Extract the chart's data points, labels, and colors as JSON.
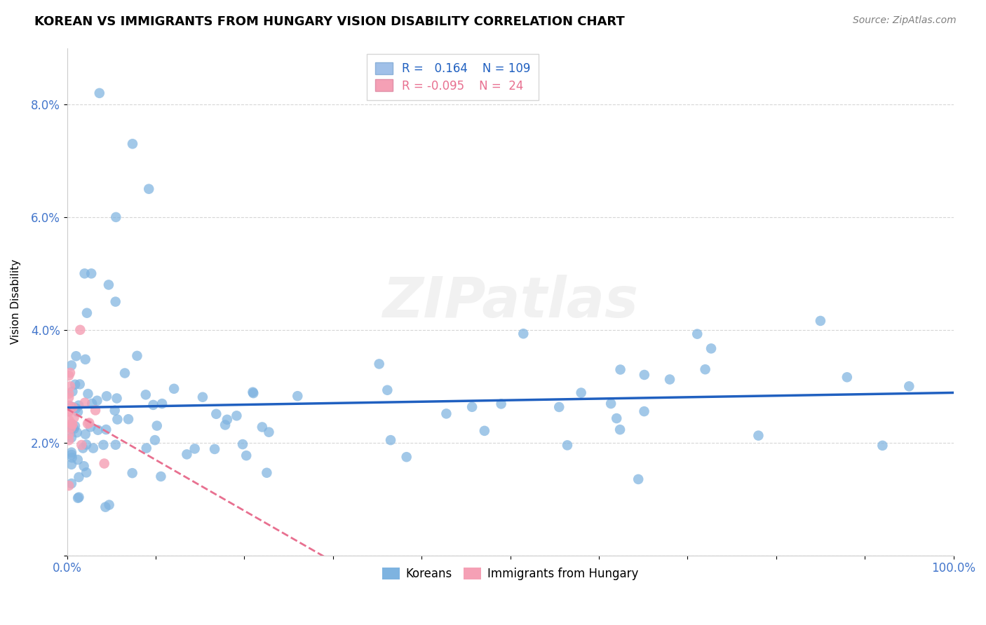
{
  "title": "KOREAN VS IMMIGRANTS FROM HUNGARY VISION DISABILITY CORRELATION CHART",
  "source": "Source: ZipAtlas.com",
  "ylabel": "Vision Disability",
  "xlim": [
    0.0,
    1.0
  ],
  "ylim": [
    0.0,
    0.09
  ],
  "watermark": "ZIPatlas",
  "korean_color": "#7eb3e0",
  "hungary_color": "#f5a0b5",
  "korean_line_color": "#2060c0",
  "hungary_line_color": "#e87090",
  "legend_box_color_korean": "#a0c0e8",
  "legend_box_color_hungary": "#f5a0b5",
  "korean_R": 0.164,
  "korean_N": 109,
  "hungary_R": -0.095,
  "hungary_N": 24,
  "background_color": "#ffffff",
  "grid_color": "#cccccc",
  "tick_color": "#4477cc"
}
